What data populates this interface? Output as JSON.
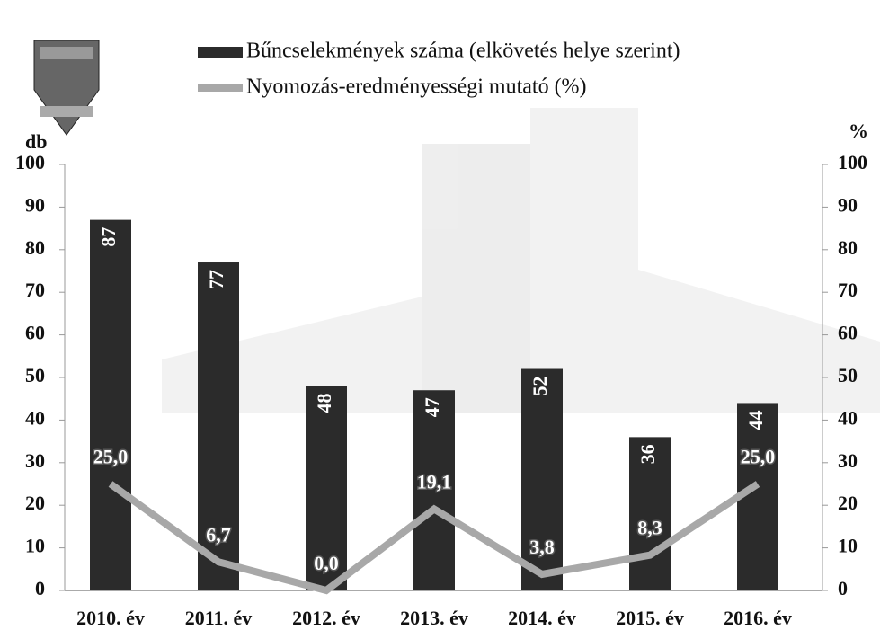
{
  "chart_data": {
    "type": "bar",
    "categories": [
      "2010. év",
      "2011. év",
      "2012. év",
      "2013. év",
      "2014. év",
      "2015. év",
      "2016. év"
    ],
    "series": [
      {
        "name": "Bűncselekmények száma (elkövetés helye szerint)",
        "type": "bar",
        "color": "#2b2b2b",
        "values": [
          87,
          77,
          48,
          47,
          52,
          36,
          44
        ]
      },
      {
        "name": "Nyomozás-eredményességi mutató (%)",
        "type": "line",
        "axis": "y2",
        "color": "#a8a8a8",
        "values": [
          25.0,
          6.7,
          0.0,
          19.1,
          3.8,
          8.3,
          25.0
        ],
        "value_labels": [
          "25,0",
          "6,7",
          "0,0",
          "19,1",
          "3,8",
          "8,3",
          "25,0"
        ]
      }
    ],
    "ylabel": "db",
    "y2label": "%",
    "ylim": [
      0,
      100
    ],
    "yticks": [
      0,
      10,
      20,
      30,
      40,
      50,
      60,
      70,
      80,
      90,
      100
    ],
    "y2lim": [
      0,
      100
    ],
    "y2ticks": [
      0,
      10,
      20,
      30,
      40,
      50,
      60,
      70,
      80,
      90,
      100
    ]
  }
}
